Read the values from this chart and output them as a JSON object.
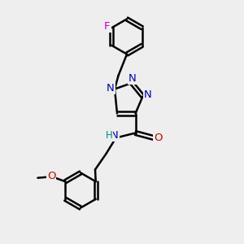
{
  "background_color": "#eeeeee",
  "bond_color": "#000000",
  "bond_width": 1.8,
  "atom_colors": {
    "N": "#0000cc",
    "O": "#cc0000",
    "F": "#cc00cc",
    "H": "#008888"
  },
  "font_size": 8.5,
  "fig_width": 3.0,
  "fig_height": 3.0,
  "dpi": 100,
  "xlim": [
    0,
    10
  ],
  "ylim": [
    0,
    10
  ]
}
